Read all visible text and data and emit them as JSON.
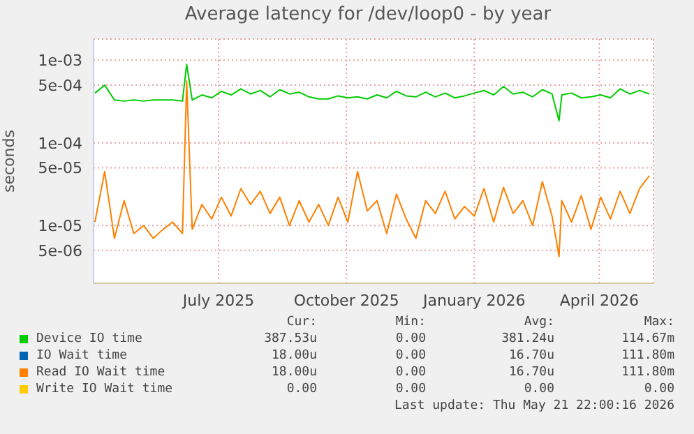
{
  "chart_data": {
    "type": "line",
    "title": "Average latency for /dev/loop0 - by year",
    "ylabel": "seconds",
    "log": "y",
    "grid": true,
    "legend": "bottom",
    "x": [
      "2025-04-03",
      "2025-04-10",
      "2025-04-17",
      "2025-04-24",
      "2025-05-01",
      "2025-05-08",
      "2025-05-15",
      "2025-05-22",
      "2025-05-29",
      "2025-06-05",
      "2025-06-08",
      "2025-06-12",
      "2025-06-19",
      "2025-06-26",
      "2025-07-03",
      "2025-07-10",
      "2025-07-17",
      "2025-07-24",
      "2025-07-31",
      "2025-08-07",
      "2025-08-14",
      "2025-08-21",
      "2025-08-28",
      "2025-09-04",
      "2025-09-11",
      "2025-09-18",
      "2025-09-25",
      "2025-10-02",
      "2025-10-09",
      "2025-10-16",
      "2025-10-23",
      "2025-10-30",
      "2025-11-06",
      "2025-11-13",
      "2025-11-20",
      "2025-11-27",
      "2025-12-04",
      "2025-12-11",
      "2025-12-18",
      "2025-12-25",
      "2026-01-01",
      "2026-01-08",
      "2026-01-15",
      "2026-01-22",
      "2026-01-29",
      "2026-02-05",
      "2026-02-12",
      "2026-02-19",
      "2026-02-26",
      "2026-03-03",
      "2026-03-05",
      "2026-03-12",
      "2026-03-19",
      "2026-03-26",
      "2026-04-02",
      "2026-04-09",
      "2026-04-16",
      "2026-04-23",
      "2026-04-30",
      "2026-05-07"
    ],
    "xlim": [
      "2025-04-02",
      "2026-05-10"
    ],
    "xticks": [
      {
        "value": "2025-07-01",
        "label": "July 2025"
      },
      {
        "value": "2025-10-01",
        "label": "October 2025"
      },
      {
        "value": "2026-01-01",
        "label": "January 2026"
      },
      {
        "value": "2026-04-01",
        "label": "April 2026"
      }
    ],
    "ylim": [
      2e-06,
      0.0018
    ],
    "yticks": [
      {
        "value": 5e-06,
        "label": "5e-06"
      },
      {
        "value": 1e-05,
        "label": "1e-05"
      },
      {
        "value": 5e-05,
        "label": "5e-05"
      },
      {
        "value": 0.0001,
        "label": "1e-04"
      },
      {
        "value": 0.0005,
        "label": "5e-04"
      },
      {
        "value": 0.001,
        "label": "1e-03"
      }
    ],
    "series": [
      {
        "name": "Device IO time",
        "color": "#00cc00",
        "values": [
          0.0004,
          0.0005,
          0.00033,
          0.00032,
          0.00033,
          0.00032,
          0.00033,
          0.00033,
          0.00033,
          0.00032,
          0.00089,
          0.00033,
          0.00038,
          0.00035,
          0.00042,
          0.00038,
          0.00045,
          0.00039,
          0.00043,
          0.00036,
          0.00044,
          0.00039,
          0.00041,
          0.00036,
          0.00034,
          0.00034,
          0.00037,
          0.00035,
          0.00036,
          0.00034,
          0.00038,
          0.00035,
          0.00042,
          0.00037,
          0.00036,
          0.00041,
          0.00036,
          0.0004,
          0.00035,
          0.00037,
          0.0004,
          0.00043,
          0.00038,
          0.00048,
          0.00039,
          0.00041,
          0.00036,
          0.00044,
          0.00039,
          0.000185,
          0.00038,
          0.0004,
          0.00035,
          0.00036,
          0.00038,
          0.00035,
          0.00045,
          0.00039,
          0.00043,
          0.00039
        ]
      },
      {
        "name": "IO Wait time",
        "color": "#0066b3",
        "values": [
          null,
          null,
          null,
          null,
          null,
          null,
          null,
          null,
          null,
          null,
          null,
          null,
          null,
          null,
          null,
          null,
          null,
          null,
          null,
          null,
          null,
          null,
          null,
          null,
          null,
          null,
          null,
          null,
          null,
          null,
          null,
          null,
          null,
          null,
          null,
          null,
          null,
          null,
          null,
          null,
          null,
          null,
          null,
          null,
          null,
          null,
          null,
          null,
          null,
          null,
          null,
          null,
          null,
          null,
          null,
          null,
          null,
          null,
          null,
          null
        ]
      },
      {
        "name": "Read IO Wait time",
        "color": "#ff8000",
        "values": [
          1.1e-05,
          4.5e-05,
          7e-06,
          2e-05,
          8e-06,
          1e-05,
          7e-06,
          9e-06,
          1.1e-05,
          8e-06,
          0.00056,
          9e-06,
          1.8e-05,
          1.2e-05,
          2.2e-05,
          1.3e-05,
          2.8e-05,
          1.8e-05,
          2.6e-05,
          1.4e-05,
          2.2e-05,
          1e-05,
          2e-05,
          1.1e-05,
          1.8e-05,
          1e-05,
          2.2e-05,
          1.1e-05,
          4.5e-05,
          1.5e-05,
          2e-05,
          8e-06,
          2.4e-05,
          1.2e-05,
          7e-06,
          2e-05,
          1.4e-05,
          2.6e-05,
          1.2e-05,
          1.7e-05,
          1.3e-05,
          2.8e-05,
          1.1e-05,
          2.9e-05,
          1.4e-05,
          2e-05,
          1e-05,
          3.4e-05,
          1.3e-05,
          4.2e-06,
          2e-05,
          1.1e-05,
          2.3e-05,
          9e-06,
          2.2e-05,
          1.2e-05,
          2.6e-05,
          1.4e-05,
          2.8e-05,
          4e-05
        ]
      },
      {
        "name": "Write IO Wait time",
        "color": "#ffcc00",
        "values": [
          null,
          null,
          null,
          null,
          null,
          null,
          null,
          null,
          null,
          null,
          null,
          null,
          null,
          null,
          null,
          null,
          null,
          null,
          null,
          null,
          null,
          null,
          null,
          null,
          null,
          null,
          null,
          null,
          null,
          null,
          null,
          null,
          null,
          null,
          null,
          null,
          null,
          null,
          null,
          null,
          null,
          null,
          null,
          null,
          null,
          null,
          null,
          null,
          null,
          null,
          null,
          null,
          null,
          null,
          null,
          null,
          null,
          null,
          null,
          null
        ]
      }
    ],
    "annotations": [
      "Cur:",
      "Min:",
      "Avg:",
      "Max:",
      "387.53u",
      "0.00",
      "381.24u",
      "114.67m",
      "18.00u",
      "0.00",
      "16.70u",
      "111.80m",
      "18.00u",
      "0.00",
      "16.70u",
      "111.80m",
      "0.00",
      "0.00",
      "0.00",
      "0.00",
      "Last update: Thu May 21 22:00:16 2026"
    ]
  }
}
